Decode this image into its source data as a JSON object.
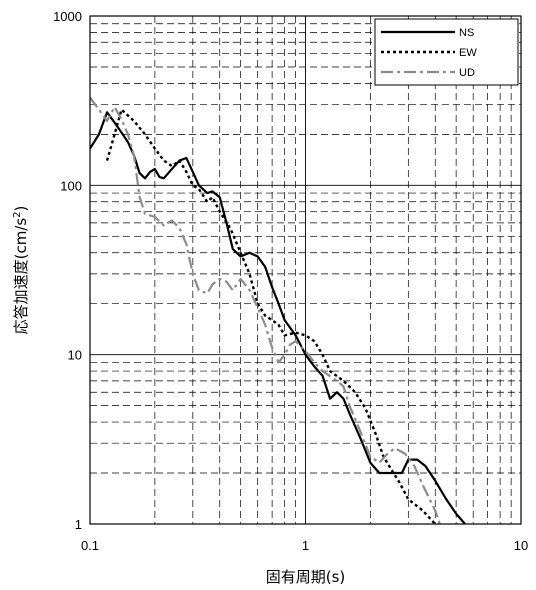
{
  "chart_data": {
    "type": "line",
    "xlabel": "固有周期(s)",
    "ylabel": "応答加速度(cm/s²)",
    "ylabel_main": "応答加速度(cm/s",
    "ylabel_sup": "2",
    "ylabel_close": ")",
    "xscale": "log",
    "yscale": "log",
    "xlim": [
      0.1,
      10
    ],
    "ylim": [
      1,
      1000
    ],
    "grid": true,
    "legend_position": "top-right",
    "x_ticks": [
      "0.1",
      "1",
      "10"
    ],
    "y_ticks": [
      "1",
      "10",
      "100",
      "1000"
    ],
    "series": [
      {
        "name": "NS",
        "color": "#000000",
        "style": "solid",
        "points": [
          [
            0.1,
            165
          ],
          [
            0.11,
            200
          ],
          [
            0.12,
            270
          ],
          [
            0.13,
            235
          ],
          [
            0.14,
            205
          ],
          [
            0.15,
            180
          ],
          [
            0.16,
            150
          ],
          [
            0.17,
            118
          ],
          [
            0.18,
            110
          ],
          [
            0.19,
            120
          ],
          [
            0.2,
            125
          ],
          [
            0.21,
            112
          ],
          [
            0.22,
            110
          ],
          [
            0.24,
            125
          ],
          [
            0.26,
            140
          ],
          [
            0.28,
            145
          ],
          [
            0.3,
            120
          ],
          [
            0.32,
            100
          ],
          [
            0.35,
            90
          ],
          [
            0.37,
            92
          ],
          [
            0.4,
            85
          ],
          [
            0.43,
            60
          ],
          [
            0.46,
            42
          ],
          [
            0.5,
            38
          ],
          [
            0.55,
            40
          ],
          [
            0.6,
            38
          ],
          [
            0.65,
            33
          ],
          [
            0.7,
            25
          ],
          [
            0.75,
            20
          ],
          [
            0.8,
            16
          ],
          [
            0.9,
            13
          ],
          [
            1.0,
            10
          ],
          [
            1.1,
            8.5
          ],
          [
            1.2,
            7.5
          ],
          [
            1.3,
            5.5
          ],
          [
            1.4,
            6
          ],
          [
            1.5,
            5.5
          ],
          [
            1.6,
            4.5
          ],
          [
            1.8,
            3.2
          ],
          [
            2.0,
            2.3
          ],
          [
            2.2,
            2.0
          ],
          [
            2.5,
            2.0
          ],
          [
            2.8,
            2.0
          ],
          [
            3.0,
            2.4
          ],
          [
            3.3,
            2.4
          ],
          [
            3.6,
            2.2
          ],
          [
            4.0,
            1.8
          ],
          [
            4.5,
            1.4
          ],
          [
            5.0,
            1.15
          ],
          [
            5.5,
            1.0
          ]
        ]
      },
      {
        "name": "EW",
        "color": "#000000",
        "style": "dotted",
        "points": [
          [
            0.12,
            140
          ],
          [
            0.13,
            200
          ],
          [
            0.14,
            280
          ],
          [
            0.16,
            240
          ],
          [
            0.18,
            200
          ],
          [
            0.2,
            165
          ],
          [
            0.22,
            140
          ],
          [
            0.24,
            130
          ],
          [
            0.26,
            140
          ],
          [
            0.28,
            120
          ],
          [
            0.3,
            100
          ],
          [
            0.32,
            95
          ],
          [
            0.35,
            80
          ],
          [
            0.37,
            85
          ],
          [
            0.4,
            70
          ],
          [
            0.45,
            55
          ],
          [
            0.5,
            40
          ],
          [
            0.55,
            30
          ],
          [
            0.6,
            20
          ],
          [
            0.65,
            17
          ],
          [
            0.7,
            16
          ],
          [
            0.75,
            15
          ],
          [
            0.8,
            13
          ],
          [
            0.9,
            13.5
          ],
          [
            1.0,
            13
          ],
          [
            1.1,
            12
          ],
          [
            1.2,
            10
          ],
          [
            1.3,
            8
          ],
          [
            1.5,
            7
          ],
          [
            1.7,
            6
          ],
          [
            1.9,
            4.8
          ],
          [
            2.1,
            3.5
          ],
          [
            2.3,
            2.5
          ],
          [
            2.5,
            2.1
          ],
          [
            2.7,
            1.8
          ],
          [
            3.0,
            1.4
          ],
          [
            3.5,
            1.2
          ],
          [
            4.0,
            1.0
          ]
        ]
      },
      {
        "name": "UD",
        "color": "#8c8c8c",
        "style": "dashdot",
        "points": [
          [
            0.1,
            330
          ],
          [
            0.11,
            280
          ],
          [
            0.12,
            240
          ],
          [
            0.13,
            290
          ],
          [
            0.14,
            245
          ],
          [
            0.15,
            200
          ],
          [
            0.16,
            150
          ],
          [
            0.17,
            85
          ],
          [
            0.18,
            68
          ],
          [
            0.2,
            65
          ],
          [
            0.22,
            58
          ],
          [
            0.24,
            62
          ],
          [
            0.26,
            56
          ],
          [
            0.28,
            45
          ],
          [
            0.3,
            30
          ],
          [
            0.32,
            24
          ],
          [
            0.35,
            23
          ],
          [
            0.37,
            26
          ],
          [
            0.4,
            28
          ],
          [
            0.43,
            27
          ],
          [
            0.46,
            24
          ],
          [
            0.5,
            28
          ],
          [
            0.55,
            24
          ],
          [
            0.6,
            19
          ],
          [
            0.65,
            15
          ],
          [
            0.7,
            11
          ],
          [
            0.75,
            9
          ],
          [
            0.8,
            10
          ],
          [
            0.85,
            11.5
          ],
          [
            0.9,
            12
          ],
          [
            1.0,
            10.5
          ],
          [
            1.1,
            9
          ],
          [
            1.2,
            8
          ],
          [
            1.4,
            7
          ],
          [
            1.5,
            6.5
          ],
          [
            1.6,
            5
          ],
          [
            1.8,
            3.5
          ],
          [
            2.0,
            2.5
          ],
          [
            2.2,
            2.3
          ],
          [
            2.4,
            2.6
          ],
          [
            2.6,
            2.8
          ],
          [
            2.9,
            2.6
          ],
          [
            3.2,
            2.2
          ],
          [
            3.5,
            1.7
          ],
          [
            4.0,
            1.2
          ],
          [
            4.2,
            1.0
          ]
        ]
      }
    ]
  }
}
